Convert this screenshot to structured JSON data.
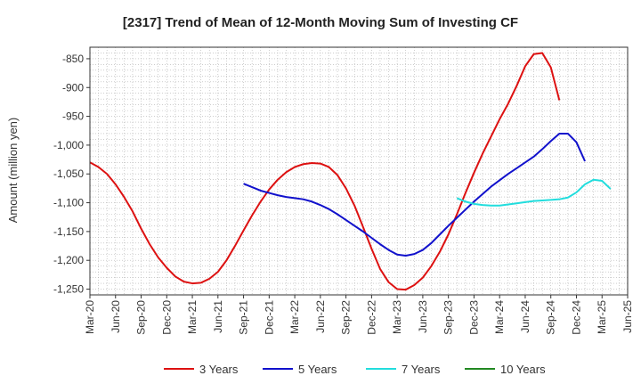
{
  "chart_data": {
    "type": "line",
    "title": "[2317]  Trend of Mean of 12-Month Moving Sum of Investing CF",
    "xlabel": "",
    "ylabel": "Amount (million yen)",
    "ylim": [
      -1260,
      -830
    ],
    "yticks": [
      -850,
      -900,
      -950,
      -1000,
      -1050,
      -1100,
      -1150,
      -1200,
      -1250
    ],
    "ytick_labels": [
      "-850",
      "-900",
      "-950",
      "-1,000",
      "-1,050",
      "-1,100",
      "-1,150",
      "-1,200",
      "-1,250"
    ],
    "xticks": [
      "Mar-20",
      "Jun-20",
      "Sep-20",
      "Dec-20",
      "Mar-21",
      "Jun-21",
      "Sep-21",
      "Dec-21",
      "Mar-22",
      "Jun-22",
      "Sep-22",
      "Dec-22",
      "Mar-23",
      "Jun-23",
      "Sep-23",
      "Dec-23",
      "Mar-24",
      "Jun-24",
      "Sep-24",
      "Dec-24",
      "Mar-25",
      "Jun-25"
    ],
    "grid": true,
    "legend_position": "bottom",
    "series": [
      {
        "name": "3 Years",
        "color": "#dd1111",
        "start_index": 0,
        "values": [
          -1030,
          -1038,
          -1050,
          -1068,
          -1090,
          -1115,
          -1145,
          -1172,
          -1195,
          -1213,
          -1228,
          -1237,
          -1240,
          -1239,
          -1232,
          -1220,
          -1200,
          -1175,
          -1148,
          -1122,
          -1098,
          -1077,
          -1060,
          -1047,
          -1038,
          -1033,
          -1031,
          -1032,
          -1038,
          -1052,
          -1075,
          -1105,
          -1142,
          -1180,
          -1215,
          -1238,
          -1250,
          -1251,
          -1243,
          -1230,
          -1210,
          -1185,
          -1155,
          -1120,
          -1083,
          -1048,
          -1015,
          -985,
          -955,
          -928,
          -897,
          -863,
          -842,
          -840,
          -865,
          -922
        ]
      },
      {
        "name": "5 Years",
        "color": "#1111cc",
        "start_index": 18,
        "values": [
          -1067,
          -1073,
          -1079,
          -1083,
          -1087,
          -1090,
          -1092,
          -1094,
          -1098,
          -1104,
          -1111,
          -1120,
          -1130,
          -1140,
          -1150,
          -1161,
          -1172,
          -1182,
          -1190,
          -1192,
          -1189,
          -1182,
          -1170,
          -1155,
          -1140,
          -1126,
          -1112,
          -1098,
          -1085,
          -1072,
          -1061,
          -1050,
          -1040,
          -1030,
          -1020,
          -1007,
          -993,
          -980,
          -980,
          -995,
          -1028
        ]
      },
      {
        "name": "7 Years",
        "color": "#22dddd",
        "start_index": 43,
        "values": [
          -1092,
          -1098,
          -1102,
          -1104,
          -1105,
          -1105,
          -1103,
          -1101,
          -1099,
          -1097,
          -1096,
          -1095,
          -1094,
          -1091,
          -1082,
          -1068,
          -1060,
          -1062,
          -1076
        ]
      },
      {
        "name": "10 Years",
        "color": "#228822",
        "start_index": 0,
        "values": []
      }
    ]
  }
}
